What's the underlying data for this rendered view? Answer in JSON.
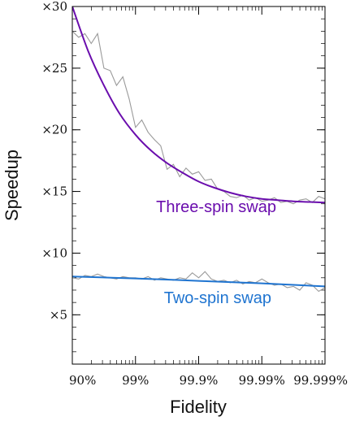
{
  "chart_data": {
    "type": "line",
    "title": "",
    "xlabel": "Fidelity",
    "ylabel": "Speedup",
    "x_scale": "-log10(1 - fidelity)",
    "x_ticks": [
      {
        "value": 1,
        "label": "90%"
      },
      {
        "value": 2,
        "label": "99%"
      },
      {
        "value": 3,
        "label": "99.9%"
      },
      {
        "value": 4,
        "label": "99.99%"
      },
      {
        "value": 5,
        "label": "99.999%"
      }
    ],
    "y_ticks": [
      {
        "value": 5,
        "label": "×5"
      },
      {
        "value": 10,
        "label": "×10"
      },
      {
        "value": 15,
        "label": "×15"
      },
      {
        "value": 20,
        "label": "×20"
      },
      {
        "value": 25,
        "label": "×25"
      },
      {
        "value": 30,
        "label": "×30"
      }
    ],
    "xlim": [
      1,
      5
    ],
    "ylim": [
      1,
      30
    ],
    "grid": false,
    "series": [
      {
        "name": "Three-spin swap",
        "color": "#6a0dad",
        "fit_x": [
          1.0,
          1.25,
          1.5,
          1.75,
          2.0,
          2.25,
          2.5,
          2.75,
          3.0,
          3.25,
          3.5,
          3.75,
          4.0,
          4.25,
          4.5,
          4.75,
          5.0
        ],
        "fit_y": [
          30.0,
          26.4,
          23.6,
          21.3,
          19.6,
          18.3,
          17.3,
          16.5,
          15.8,
          15.3,
          14.9,
          14.6,
          14.4,
          14.3,
          14.2,
          14.15,
          14.1
        ],
        "raw_x": [
          1.0,
          1.1,
          1.2,
          1.3,
          1.4,
          1.5,
          1.6,
          1.7,
          1.8,
          1.9,
          2.0,
          2.1,
          2.2,
          2.3,
          2.4,
          2.5,
          2.6,
          2.7,
          2.8,
          2.9,
          3.0,
          3.1,
          3.2,
          3.3,
          3.4,
          3.5,
          3.6,
          3.7,
          3.8,
          3.9,
          4.0,
          4.1,
          4.2,
          4.3,
          4.4,
          4.5,
          4.6,
          4.7,
          4.8,
          4.9,
          5.0
        ],
        "raw_y": [
          28.0,
          27.5,
          27.8,
          27.0,
          27.8,
          25.0,
          24.8,
          23.6,
          24.3,
          22.5,
          20.2,
          20.8,
          19.8,
          19.2,
          18.7,
          16.8,
          17.2,
          16.2,
          16.9,
          16.4,
          16.6,
          15.9,
          16.0,
          15.2,
          15.0,
          14.6,
          14.5,
          14.7,
          14.3,
          14.5,
          14.2,
          14.3,
          14.5,
          14.1,
          14.2,
          14.0,
          14.3,
          14.4,
          14.1,
          14.6,
          14.4
        ]
      },
      {
        "name": "Two-spin swap",
        "color": "#1f74d0",
        "fit_x": [
          1.0,
          2.0,
          3.0,
          4.0,
          5.0
        ],
        "fit_y": [
          8.1,
          7.95,
          7.75,
          7.55,
          7.3
        ],
        "raw_x": [
          1.0,
          1.1,
          1.2,
          1.3,
          1.4,
          1.5,
          1.6,
          1.7,
          1.8,
          1.9,
          2.0,
          2.1,
          2.2,
          2.3,
          2.4,
          2.5,
          2.6,
          2.7,
          2.8,
          2.9,
          3.0,
          3.1,
          3.2,
          3.3,
          3.4,
          3.5,
          3.6,
          3.7,
          3.8,
          3.9,
          4.0,
          4.1,
          4.2,
          4.3,
          4.4,
          4.5,
          4.6,
          4.7,
          4.8,
          4.9,
          5.0
        ],
        "raw_y": [
          8.0,
          7.9,
          8.2,
          8.1,
          8.3,
          8.1,
          8.0,
          7.9,
          8.1,
          8.0,
          8.0,
          7.9,
          8.1,
          7.8,
          8.0,
          7.9,
          7.8,
          8.0,
          7.9,
          8.4,
          8.0,
          8.5,
          7.9,
          7.7,
          7.8,
          7.6,
          7.8,
          7.5,
          7.7,
          7.6,
          7.9,
          7.6,
          7.4,
          7.5,
          7.2,
          7.3,
          7.0,
          7.6,
          7.4,
          6.9,
          7.2
        ]
      }
    ]
  }
}
